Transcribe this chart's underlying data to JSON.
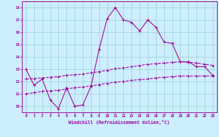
{
  "xlabel": "Windchill (Refroidissement éolien,°C)",
  "bg_color": "#cceeff",
  "line_color": "#990099",
  "grid_color": "#99cccc",
  "xlim": [
    -0.5,
    23.5
  ],
  "ylim": [
    9.5,
    18.5
  ],
  "xticks": [
    0,
    1,
    2,
    3,
    4,
    5,
    6,
    7,
    8,
    9,
    10,
    11,
    12,
    13,
    14,
    15,
    16,
    17,
    18,
    19,
    20,
    21,
    22,
    23
  ],
  "yticks": [
    10,
    11,
    12,
    13,
    14,
    15,
    16,
    17,
    18
  ],
  "main_x": [
    0,
    1,
    2,
    3,
    4,
    5,
    6,
    7,
    8,
    9,
    10,
    11,
    12,
    13,
    14,
    15,
    16,
    17,
    18,
    19,
    20,
    21,
    22,
    23
  ],
  "main_y": [
    13.0,
    11.7,
    12.2,
    10.5,
    9.8,
    11.5,
    10.0,
    10.1,
    11.6,
    14.6,
    17.1,
    18.0,
    17.0,
    16.8,
    16.1,
    17.0,
    16.4,
    15.2,
    15.1,
    13.6,
    13.6,
    13.2,
    13.2,
    12.5
  ],
  "upper_x": [
    0,
    1,
    2,
    3,
    4,
    5,
    6,
    7,
    8,
    9,
    10,
    11,
    12,
    13,
    14,
    15,
    16,
    17,
    18,
    19,
    20,
    21,
    22,
    23
  ],
  "upper_y": [
    12.2,
    12.25,
    12.3,
    12.35,
    12.4,
    12.5,
    12.55,
    12.6,
    12.7,
    12.8,
    12.9,
    13.05,
    13.1,
    13.2,
    13.3,
    13.4,
    13.45,
    13.5,
    13.55,
    13.6,
    13.55,
    13.5,
    13.4,
    13.3
  ],
  "lower_x": [
    0,
    1,
    2,
    3,
    4,
    5,
    6,
    7,
    8,
    9,
    10,
    11,
    12,
    13,
    14,
    15,
    16,
    17,
    18,
    19,
    20,
    21,
    22,
    23
  ],
  "lower_y": [
    11.0,
    11.1,
    11.2,
    11.25,
    11.3,
    11.4,
    11.5,
    11.55,
    11.65,
    11.75,
    11.85,
    11.95,
    12.0,
    12.1,
    12.15,
    12.2,
    12.3,
    12.35,
    12.4,
    12.45,
    12.45,
    12.45,
    12.45,
    12.45
  ]
}
